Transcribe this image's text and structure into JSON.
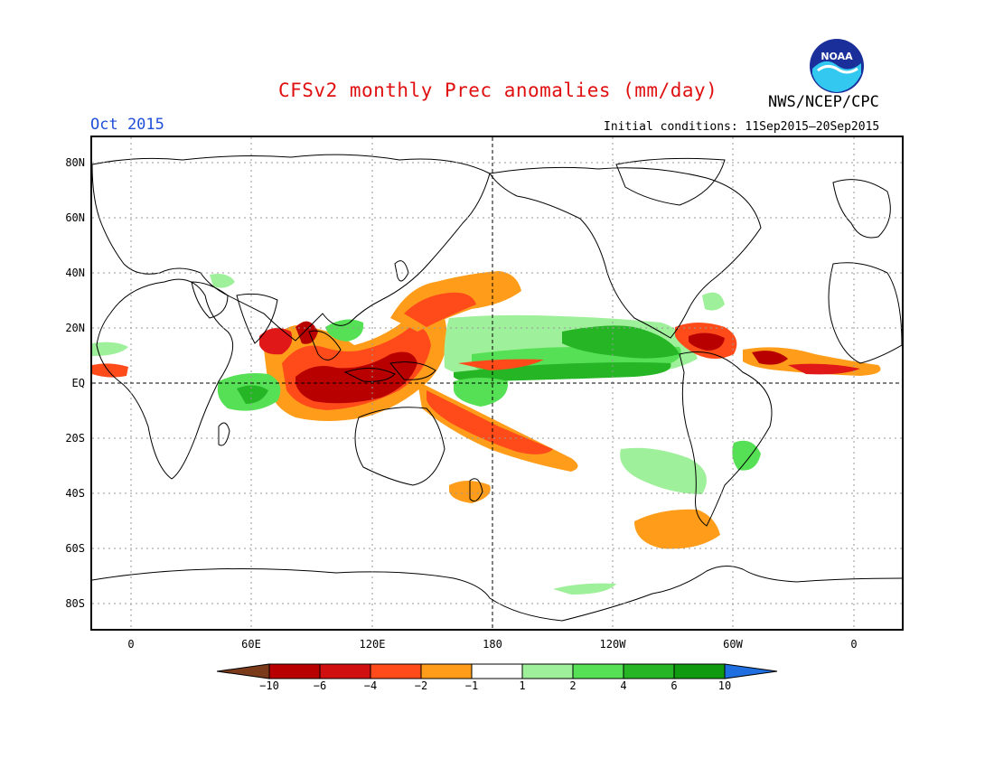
{
  "header": {
    "title": "CFSv2 monthly Prec anomalies (mm/day)",
    "agency": "NWS/NCEP/CPC",
    "logo_text": "NOAA",
    "month": "Oct 2015",
    "initial_conditions": "Initial conditions: 11Sep2015—20Sep2015"
  },
  "axes": {
    "lat_labels": [
      "80N",
      "60N",
      "40N",
      "20N",
      "EQ",
      "20S",
      "40S",
      "60S",
      "80S"
    ],
    "lon_labels": [
      "0",
      "60E",
      "120E",
      "180",
      "120W",
      "60W",
      "0"
    ]
  },
  "colorbar": {
    "labels": [
      "-10",
      "-6",
      "-4",
      "-2",
      "-1",
      "1",
      "2",
      "4",
      "6",
      "10"
    ],
    "colors": [
      "#7b3a1a",
      "#b80000",
      "#d01010",
      "#ff4a1a",
      "#ff9d1a",
      "#ffffff",
      "#9ff09a",
      "#55e055",
      "#25b525",
      "#0f9a0f",
      "#1f6fe0"
    ]
  },
  "palette": {
    "title_red": "#e01010",
    "month_blue": "#1f4fd8",
    "dark_red": "#b80000",
    "red": "#e01818",
    "orange_red": "#ff4a1a",
    "orange": "#ff9d1a",
    "light_green": "#9ff09a",
    "green": "#55e055",
    "mid_green": "#25b525",
    "dark_green": "#0f9a0f"
  }
}
